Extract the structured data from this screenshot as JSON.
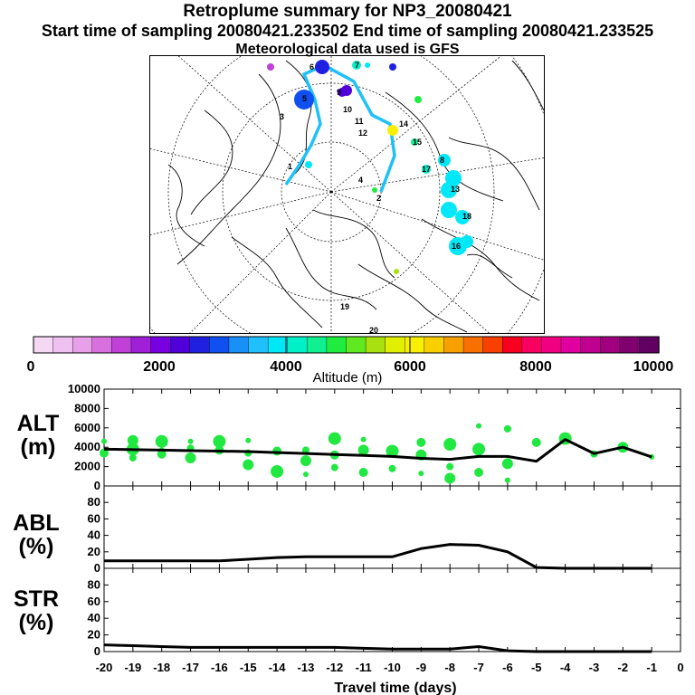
{
  "header": {
    "title": "Retroplume summary for NP3_20080421",
    "sampling_line": "Start time of sampling 20080421.233502     End time of sampling 20080421.233525",
    "meteo_line": "Meteorological data used is GFS"
  },
  "colorbar": {
    "ticks": [
      "0",
      "2000",
      "4000",
      "6000",
      "8000",
      "10000"
    ],
    "label": "Altitude (m)",
    "colors": [
      "#f4d8f4",
      "#f0c0f0",
      "#e8a0e8",
      "#d870e0",
      "#c040d8",
      "#a020d8",
      "#7800e0",
      "#5000d8",
      "#2020e0",
      "#1050f0",
      "#1890f8",
      "#20c0fc",
      "#00e8f8",
      "#00f0c8",
      "#10f090",
      "#20ec40",
      "#60e820",
      "#a8e010",
      "#e0f000",
      "#f8f000",
      "#f8d000",
      "#f8a000",
      "#f87000",
      "#f84000",
      "#f80020",
      "#f80060",
      "#f00080",
      "#e000a0",
      "#c00090",
      "#a00080",
      "#800070",
      "#600060"
    ]
  },
  "map_points": {
    "labels": [
      "1",
      "2",
      "3",
      "4",
      "5",
      "6",
      "7",
      "8",
      "9",
      "10",
      "11",
      "12",
      "13",
      "14",
      "15",
      "16",
      "17",
      "18",
      "19",
      "20"
    ],
    "path_color": "#20c0f8"
  },
  "chart_data": [
    {
      "type": "scatter",
      "panel": "ALT",
      "ylabel": "ALT",
      "yunit": "(m)",
      "ylim": [
        0,
        10000
      ],
      "yticks": [
        0,
        2000,
        4000,
        6000,
        8000,
        10000
      ],
      "xlim": [
        -20,
        0
      ],
      "median_line": {
        "x": [
          -20,
          -19,
          -18,
          -17,
          -16,
          -15,
          -14,
          -13,
          -12,
          -11,
          -10,
          -9,
          -8,
          -7,
          -6,
          -5,
          -4,
          -3,
          -2,
          -1
        ],
        "y": [
          3800,
          3750,
          3700,
          3650,
          3600,
          3550,
          3450,
          3350,
          3250,
          3150,
          3050,
          2850,
          2750,
          3050,
          3050,
          2550,
          4800,
          3350,
          4000,
          3000
        ]
      },
      "points": {
        "x": [
          -20,
          -20,
          -19,
          -19,
          -19,
          -18,
          -18,
          -18,
          -17,
          -17,
          -17,
          -16,
          -16,
          -15,
          -15,
          -15,
          -14,
          -14,
          -13,
          -13,
          -13,
          -12,
          -12,
          -12,
          -11,
          -11,
          -11,
          -10,
          -10,
          -9,
          -9,
          -9,
          -8,
          -8,
          -8,
          -7,
          -7,
          -7,
          -6,
          -6,
          -6,
          -5,
          -4,
          -3,
          -2,
          -1
        ],
        "y": [
          4600,
          3400,
          3800,
          2900,
          4700,
          3700,
          3300,
          4600,
          3900,
          2900,
          4600,
          3700,
          4600,
          3400,
          2200,
          4700,
          3600,
          1500,
          3700,
          2600,
          1200,
          3200,
          4900,
          1900,
          3700,
          4800,
          1400,
          3600,
          1800,
          3200,
          1300,
          4500,
          4300,
          2000,
          800,
          6200,
          1400,
          3800,
          5900,
          2300,
          600,
          4500,
          4900,
          3300,
          4000,
          3000
        ],
        "color": "#20e840"
      },
      "xlabel": "",
      "title": ""
    },
    {
      "type": "line",
      "panel": "ABL",
      "ylabel": "ABL",
      "yunit": "(%)",
      "ylim": [
        0,
        100
      ],
      "yticks": [
        0,
        20,
        40,
        60,
        80
      ],
      "xlim": [
        -20,
        0
      ],
      "x": [
        -20,
        -19,
        -18,
        -17,
        -16,
        -15,
        -14,
        -13,
        -12,
        -11,
        -10,
        -9,
        -8,
        -7,
        -6,
        -5,
        -4,
        -3,
        -2,
        -1
      ],
      "values": [
        9,
        9,
        9,
        9,
        9,
        11,
        13,
        14,
        14,
        14,
        14,
        24,
        29,
        28,
        20,
        1,
        0,
        0,
        0,
        0
      ]
    },
    {
      "type": "line",
      "panel": "STR",
      "ylabel": "STR",
      "yunit": "(%)",
      "ylim": [
        0,
        100
      ],
      "yticks": [
        0,
        20,
        40,
        60,
        80
      ],
      "xlim": [
        -20,
        0
      ],
      "x": [
        -20,
        -19,
        -18,
        -17,
        -16,
        -15,
        -14,
        -13,
        -12,
        -11,
        -10,
        -9,
        -8,
        -7,
        -6,
        -5,
        -4,
        -3,
        -2,
        -1
      ],
      "values": [
        8,
        7,
        6,
        5,
        5,
        5,
        5,
        5,
        5,
        4,
        3,
        3,
        3,
        6,
        1,
        0,
        0,
        0,
        0,
        0
      ],
      "xticks": [
        "-20",
        "-19",
        "-18",
        "-17",
        "-16",
        "-15",
        "-14",
        "-13",
        "-12",
        "-11",
        "-10",
        "-9",
        "-8",
        "-7",
        "-6",
        "-5",
        "-4",
        "-3",
        "-2",
        "-1",
        "0"
      ],
      "xlabel": "Travel time (days)"
    }
  ]
}
